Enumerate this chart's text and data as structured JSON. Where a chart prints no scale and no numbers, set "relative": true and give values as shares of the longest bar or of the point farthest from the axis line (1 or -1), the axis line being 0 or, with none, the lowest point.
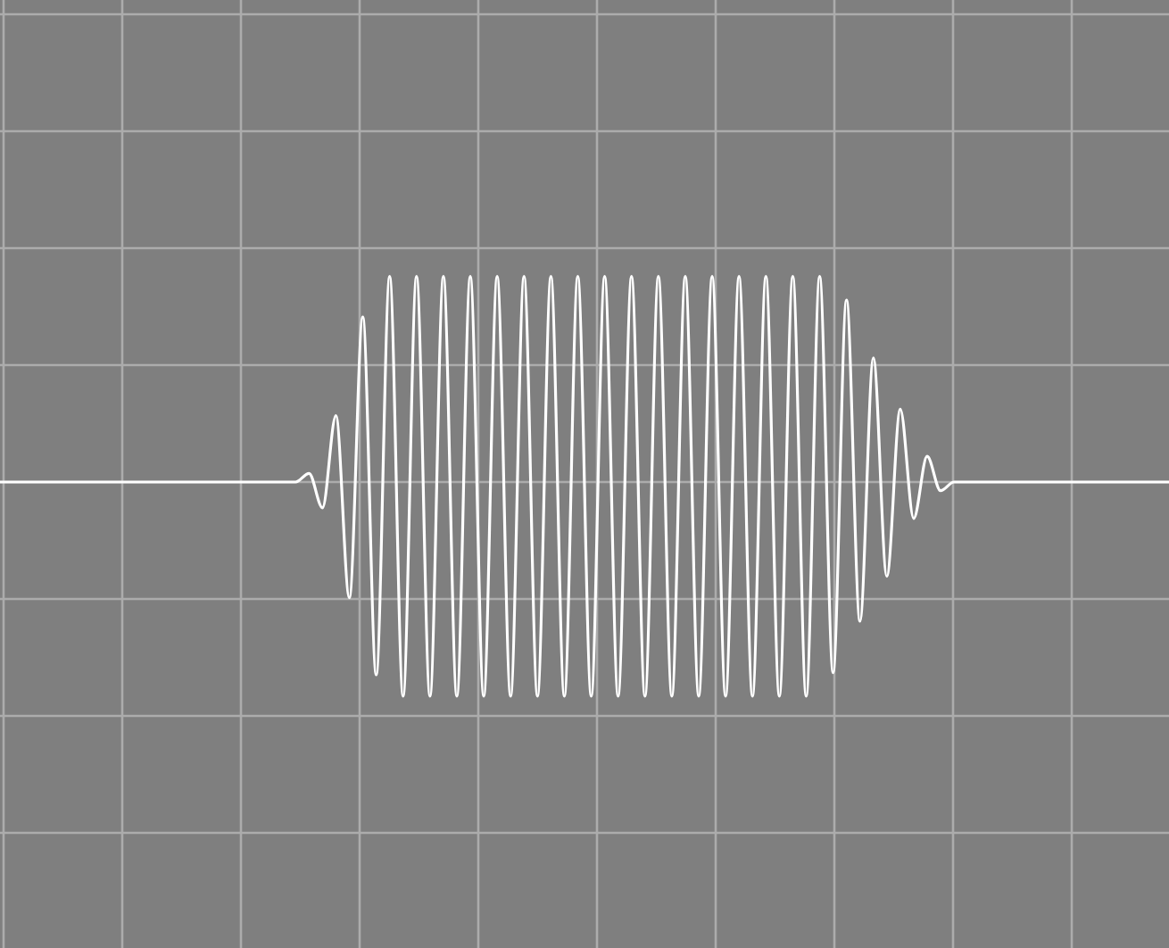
{
  "chart_data": {
    "type": "line",
    "relative": true,
    "grid": true,
    "color": "#ffffff",
    "categories": [
      null,
      null,
      null,
      null,
      null,
      null,
      null,
      null,
      null,
      null,
      null,
      null,
      null,
      null,
      null,
      null,
      null,
      null,
      null,
      null,
      null,
      null,
      null,
      null,
      null,
      null,
      null,
      null,
      null,
      null,
      null,
      null,
      null,
      null,
      null,
      null,
      null,
      null,
      null,
      null,
      null,
      null,
      null,
      null,
      null,
      null,
      null,
      null,
      null,
      null,
      null,
      null,
      null,
      null,
      null,
      null,
      null,
      null,
      null,
      null,
      null,
      null,
      null,
      null,
      null,
      null,
      null,
      null,
      null,
      null,
      null,
      null,
      null,
      null,
      null,
      null,
      null,
      null,
      null,
      null,
      null,
      null,
      null,
      null,
      null,
      null,
      null,
      null
    ],
    "values": [
      0,
      0,
      0,
      0,
      0,
      0,
      0,
      0,
      0,
      0,
      0,
      0,
      0,
      0,
      0,
      0,
      0,
      0,
      0,
      0,
      0,
      0,
      0,
      0.04,
      -0.12,
      0.31,
      -0.54,
      0.77,
      -0.9,
      0.96,
      -1,
      0.96,
      -1,
      0.96,
      -1,
      0.96,
      -1,
      0.96,
      -1,
      0.96,
      -1,
      0.96,
      -1,
      0.96,
      -1,
      0.96,
      -1,
      0.96,
      -1,
      0.96,
      -1,
      0.96,
      -1,
      0.96,
      -1,
      0.96,
      -1,
      0.96,
      -1,
      0.96,
      -1,
      0.96,
      -0.89,
      0.85,
      -0.65,
      0.58,
      -0.44,
      0.34,
      -0.17,
      0.12,
      -0.04,
      0,
      0,
      0,
      0,
      0,
      0,
      0,
      0,
      0,
      0,
      0,
      0,
      0,
      0,
      0,
      0,
      0
    ]
  }
}
